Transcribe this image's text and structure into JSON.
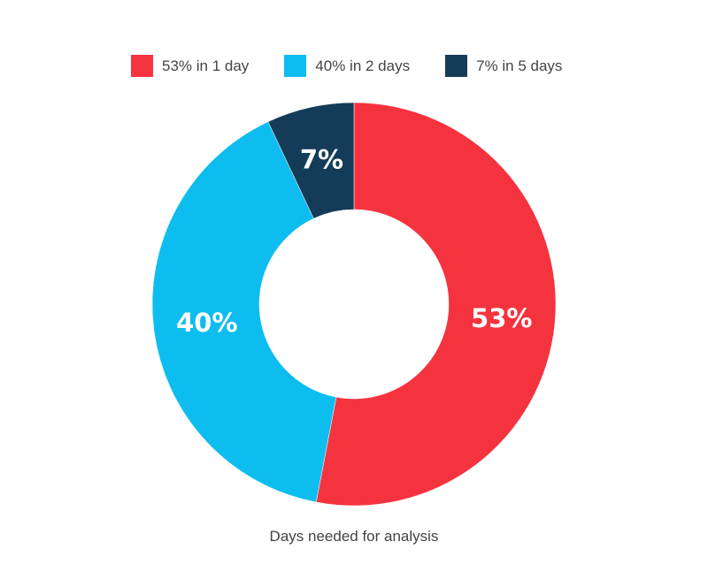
{
  "chart_data": {
    "type": "pie",
    "donut": true,
    "categories": [
      "53% in 1 day",
      "40% in 2 days",
      "7% in 5 days"
    ],
    "values": [
      53,
      40,
      7
    ],
    "data_labels": [
      "53%",
      "40%",
      "7%"
    ],
    "colors": [
      "#f5333f",
      "#0ebdf0",
      "#143c58"
    ],
    "legend_position": "top",
    "xlabel": "Days needed for analysis"
  }
}
